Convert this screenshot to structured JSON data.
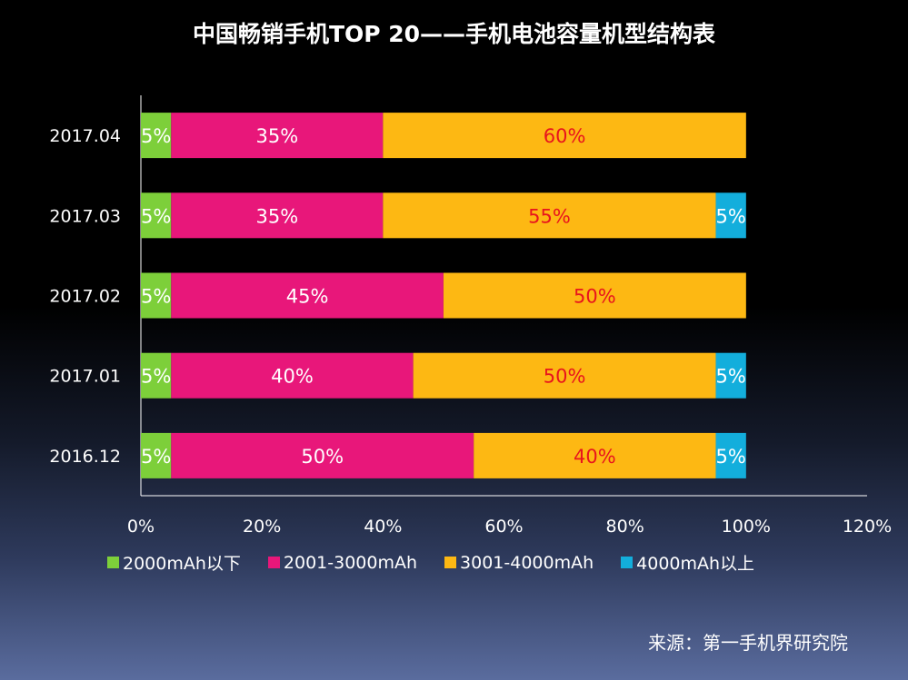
{
  "chart_data": {
    "type": "bar",
    "orientation": "horizontal",
    "stacked": true,
    "title": "中国畅销手机TOP 20——手机电池容量机型结构表",
    "categories": [
      "2017.04",
      "2017.03",
      "2017.02",
      "2017.01",
      "2016.12"
    ],
    "series": [
      {
        "name": "2000mAh以下",
        "color": "#7dcf3a",
        "label_color": "#ffffff",
        "values": [
          5,
          5,
          5,
          5,
          5
        ]
      },
      {
        "name": "2001-3000mAh",
        "color": "#e8177a",
        "label_color": "#ffffff",
        "values": [
          35,
          35,
          45,
          40,
          50
        ]
      },
      {
        "name": "3001-4000mAh",
        "color": "#fdb813",
        "label_color": "#e8141d",
        "values": [
          60,
          55,
          50,
          50,
          40
        ]
      },
      {
        "name": "4000mAh以上",
        "color": "#13aedc",
        "label_color": "#ffffff",
        "values": [
          0,
          5,
          0,
          5,
          5
        ]
      }
    ],
    "xlim": [
      0,
      120
    ],
    "x_ticks": [
      "0%",
      "20%",
      "40%",
      "60%",
      "80%",
      "100%",
      "120%"
    ],
    "grid": false,
    "legend_position": "bottom"
  },
  "source": "来源：第一手机界研究院"
}
